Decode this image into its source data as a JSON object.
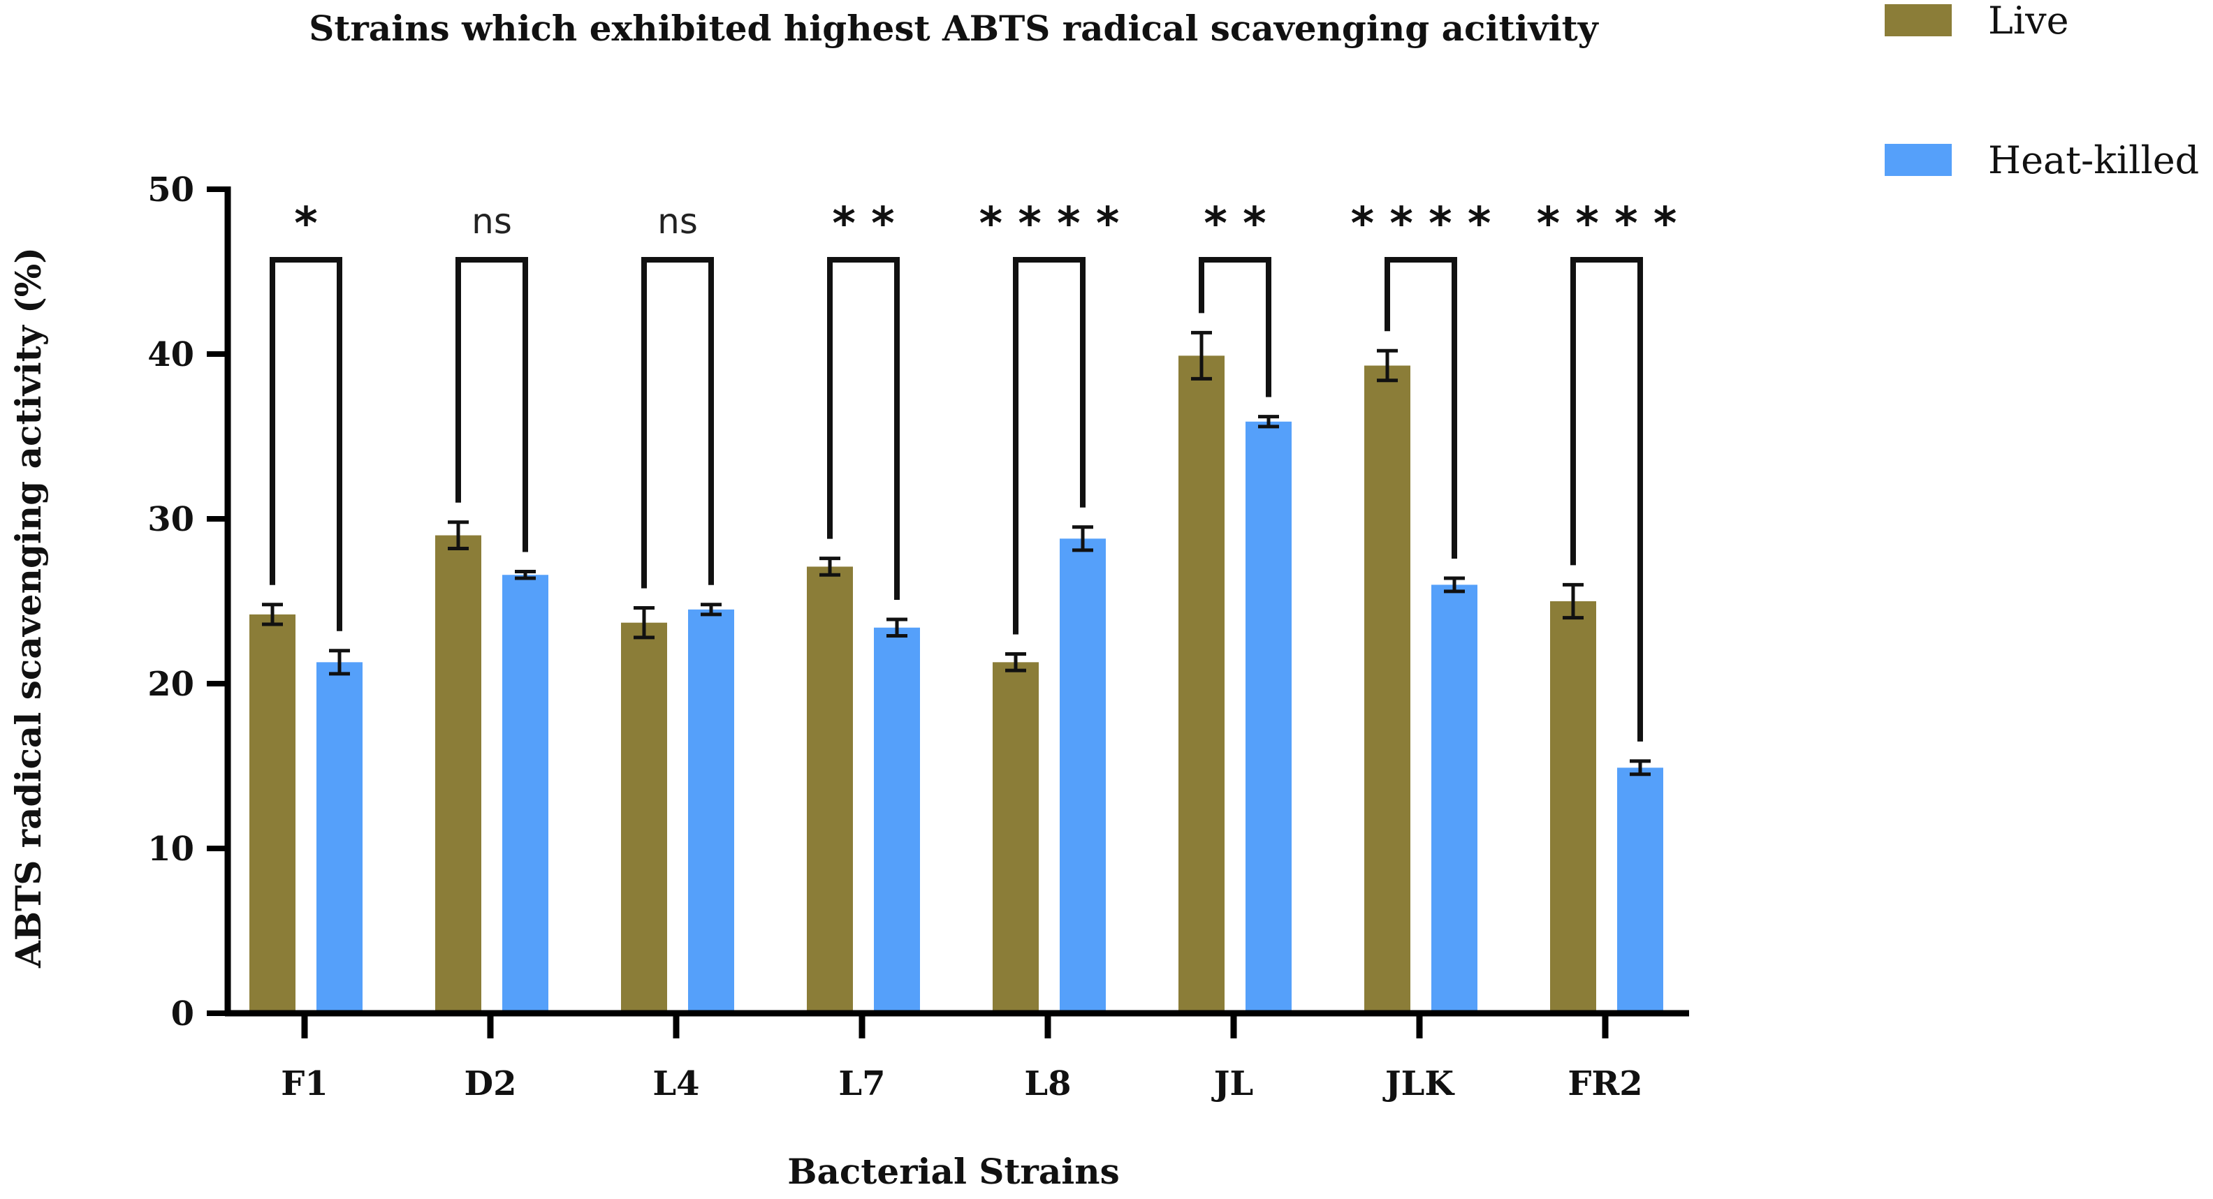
{
  "chart_data": {
    "type": "bar",
    "title": "Strains which exhibited highest ABTS radical scavenging acitivity",
    "xlabel": "Bacterial Strains",
    "ylabel": "ABTS radical scavenging activity (%)",
    "ylim": [
      0,
      50
    ],
    "yticks": [
      0,
      10,
      20,
      30,
      40,
      50
    ],
    "grid": false,
    "legend_position": "top-right",
    "categories": [
      "F1",
      "D2",
      "L4",
      "L7",
      "L8",
      "JL",
      "JLK",
      "FR2"
    ],
    "series": [
      {
        "name": "Live",
        "color": "#8b7d38",
        "values": [
          24.2,
          29.0,
          23.7,
          27.1,
          21.3,
          39.9,
          39.3,
          25.0
        ],
        "errors": [
          0.6,
          0.8,
          0.9,
          0.5,
          0.5,
          1.4,
          0.9,
          1.0
        ]
      },
      {
        "name": "Heat-killed",
        "color": "#55a0fa",
        "values": [
          21.3,
          26.6,
          24.5,
          23.4,
          28.8,
          35.9,
          26.0,
          14.9
        ],
        "errors": [
          0.7,
          0.2,
          0.3,
          0.5,
          0.7,
          0.3,
          0.4,
          0.4
        ]
      }
    ],
    "significance": [
      {
        "category": "F1",
        "label": "*"
      },
      {
        "category": "D2",
        "label": "ns"
      },
      {
        "category": "L4",
        "label": "ns"
      },
      {
        "category": "L7",
        "label": "* *"
      },
      {
        "category": "L8",
        "label": "* * * *"
      },
      {
        "category": "JL",
        "label": "* *"
      },
      {
        "category": "JLK",
        "label": "* * * *"
      },
      {
        "category": "FR2",
        "label": "* * * *"
      }
    ]
  }
}
